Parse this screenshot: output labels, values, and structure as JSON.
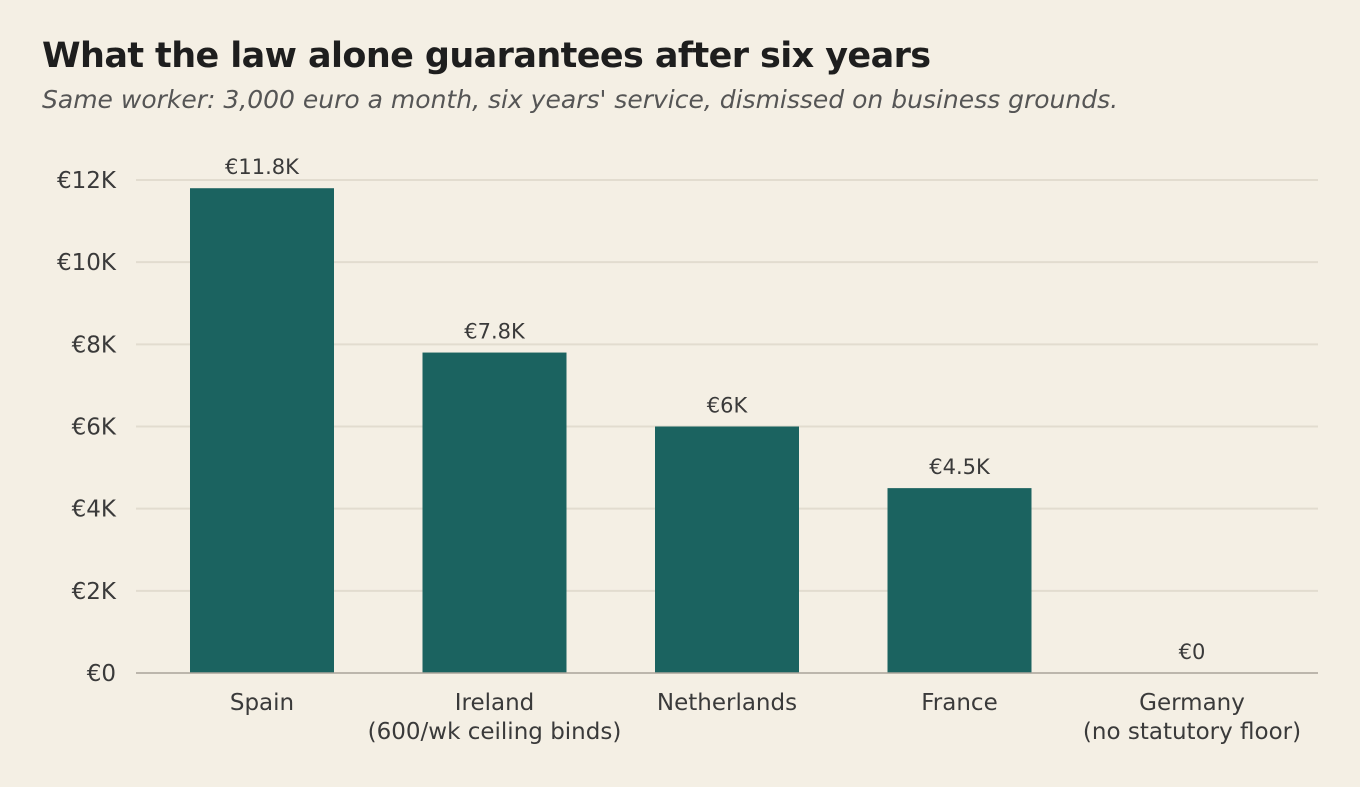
{
  "chart_data": {
    "type": "bar",
    "title": "What the law alone guarantees after six years",
    "subtitle": "Same worker: 3,000 euro a month, six years' service, dismissed on business grounds.",
    "xlabel": "",
    "ylabel": "",
    "categories": [
      [
        "Spain"
      ],
      [
        "Ireland",
        "(600/wk ceiling binds)"
      ],
      [
        "Netherlands"
      ],
      [
        "France"
      ],
      [
        "Germany",
        "(no statutory floor)"
      ]
    ],
    "values": [
      11800,
      7800,
      6000,
      4500,
      0
    ],
    "value_labels": [
      "€11.8K",
      "€7.8K",
      "€6K",
      "€4.5K",
      "€0"
    ],
    "ylim": [
      0,
      12000
    ],
    "yticks": [
      0,
      2000,
      4000,
      6000,
      8000,
      10000,
      12000
    ],
    "ytick_labels": [
      "€0",
      "€2K",
      "€4K",
      "€6K",
      "€8K",
      "€10K",
      "€12K"
    ],
    "grid": true,
    "legend": "none",
    "colors": {
      "bar": "#1b6360",
      "grid": "#e2dccf",
      "axis": "#a9a49a",
      "background": "#f4efe4"
    }
  }
}
